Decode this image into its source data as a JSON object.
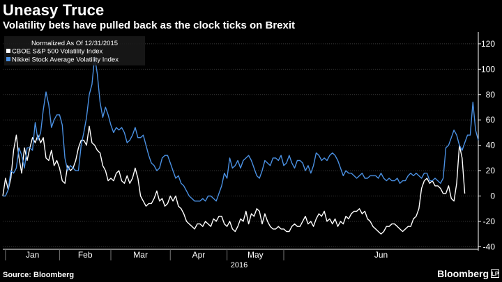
{
  "header": {
    "title": "Uneasy Truce",
    "subtitle": "Volatility bets have pulled back as the clock ticks on Brexit"
  },
  "footer": {
    "source": "Source: Bloomberg",
    "brand": "Bloomberg",
    "brand_mark": "LP"
  },
  "chart_data": {
    "type": "line",
    "legend_title": "Normalized As Of 12/31/2015",
    "legend_position": "top-left",
    "year_label": "2016",
    "x_tick_labels": [
      "Jan",
      "Feb",
      "Mar",
      "Apr",
      "May",
      "Jun"
    ],
    "y_ticks": [
      -40,
      -20,
      0,
      20,
      40,
      60,
      80,
      100,
      120
    ],
    "ylim": [
      -42,
      126
    ],
    "grid": true,
    "y_axis_side": "right",
    "x_unit": "trading day index (day 0 = 12/31/2015)",
    "x_month_starts": [
      1,
      21,
      40,
      62,
      83,
      104
    ],
    "series": [
      {
        "name": "CBOE S&P 500 Volatility Index",
        "color": "#ffffff",
        "values": [
          0,
          14,
          5,
          14,
          36,
          48,
          30,
          18,
          38,
          28,
          38,
          46,
          42,
          48,
          42,
          46,
          30,
          28,
          36,
          24,
          28,
          22,
          12,
          10,
          24,
          20,
          22,
          28,
          38,
          44,
          44,
          40,
          55,
          42,
          40,
          36,
          34,
          24,
          20,
          12,
          14,
          12,
          18,
          20,
          12,
          10,
          16,
          10,
          14,
          22,
          14,
          0,
          -4,
          -8,
          -6,
          -6,
          -2,
          4,
          -4,
          -2,
          -8,
          -6,
          0,
          -4,
          0,
          -8,
          -10,
          -14,
          -20,
          -22,
          -24,
          -26,
          -22,
          -22,
          -24,
          -20,
          -22,
          -24,
          -18,
          -20,
          -16,
          -16,
          -22,
          -24,
          -20,
          -26,
          -28,
          -24,
          -18,
          -20,
          -12,
          -22,
          -14,
          -16,
          -10,
          -12,
          -22,
          -14,
          -20,
          -24,
          -26,
          -26,
          -24,
          -26,
          -26,
          -28,
          -28,
          -24,
          -22,
          -24,
          -24,
          -20,
          -16,
          -22,
          -20,
          -24,
          -18,
          -14,
          -16,
          -12,
          -20,
          -18,
          -22,
          -18,
          -24,
          -20,
          -22,
          -16,
          -18,
          -14,
          -12,
          -12,
          -10,
          -14,
          -12,
          -18,
          -20,
          -24,
          -26,
          -28,
          -30,
          -28,
          -24,
          -24,
          -22,
          -22,
          -24,
          -26,
          -28,
          -26,
          -24,
          -24,
          -18,
          -16,
          -10,
          6,
          12,
          14,
          10,
          12,
          8,
          8,
          6,
          2,
          2,
          8,
          -2,
          -4,
          10,
          40,
          30,
          2
        ],
        "note": "values follow x index 0..N"
      },
      {
        "name": "Nikkei Stock Average Volatility Index",
        "color": "#4a90e2",
        "values": [
          0,
          0,
          5,
          20,
          18,
          22,
          38,
          32,
          22,
          38,
          38,
          36,
          58,
          44,
          50,
          68,
          82,
          72,
          54,
          60,
          64,
          64,
          56,
          30,
          20,
          24,
          22,
          20,
          20,
          40,
          50,
          62,
          80,
          88,
          110,
          96,
          74,
          62,
          70,
          64,
          56,
          50,
          54,
          52,
          54,
          50,
          42,
          44,
          48,
          54,
          46,
          46,
          48,
          40,
          32,
          26,
          24,
          20,
          22,
          30,
          32,
          32,
          26,
          20,
          14,
          16,
          10,
          8,
          4,
          0,
          -2,
          -4,
          -4,
          -4,
          -2,
          -4,
          0,
          0,
          -2,
          -4,
          2,
          8,
          18,
          14,
          30,
          22,
          24,
          28,
          22,
          28,
          30,
          32,
          28,
          22,
          16,
          14,
          20,
          28,
          26,
          24,
          30,
          30,
          28,
          32,
          24,
          26,
          32,
          26,
          22,
          28,
          28,
          26,
          20,
          24,
          18,
          24,
          34,
          32,
          28,
          30,
          28,
          32,
          34,
          32,
          28,
          22,
          16,
          20,
          18,
          18,
          16,
          14,
          16,
          18,
          14,
          14,
          16,
          16,
          16,
          14,
          18,
          14,
          12,
          14,
          12,
          12,
          14,
          10,
          12,
          12,
          16,
          18,
          16,
          18,
          16,
          14,
          18,
          18,
          12,
          12,
          14,
          12,
          10,
          14,
          38,
          40,
          46,
          52,
          48,
          40,
          36,
          42,
          48,
          48,
          74,
          52,
          44
        ],
        "note": "values follow x index 0..N"
      }
    ]
  }
}
